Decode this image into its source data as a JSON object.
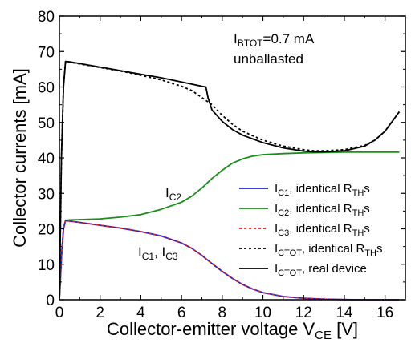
{
  "chart_data": {
    "type": "line",
    "title": "",
    "xlabel": "Collector-emitter voltage V",
    "xlabel_sub": "CE",
    "xlabel_suffix": " [V]",
    "ylabel": "Collector currents [mA]",
    "xlim": [
      0,
      17
    ],
    "ylim": [
      0,
      80
    ],
    "x_ticks": [
      0,
      2,
      4,
      6,
      8,
      10,
      12,
      14,
      16
    ],
    "y_ticks": [
      0,
      10,
      20,
      30,
      40,
      50,
      60,
      70,
      80
    ],
    "grid": false,
    "legend_position": "bottom-right",
    "annotations": {
      "ibtot": {
        "base": "I",
        "sub": "BTOT",
        "rest": "=0.7 mA"
      },
      "unballasted": "unballasted",
      "ic2": {
        "base": "I",
        "sub": "C2"
      },
      "ic1ic3": {
        "base1": "I",
        "sub1": "C1",
        "sep": ", ",
        "base2": "I",
        "sub2": "C3"
      }
    },
    "series": [
      {
        "name": "IC1, identical RTHs",
        "legend": {
          "base": "I",
          "sub": "C1",
          "mid": ", identical R",
          "sub2": "TH",
          "end": "s"
        },
        "color": "#1f1fd6",
        "dash": "solid",
        "x": [
          0,
          0.1,
          0.2,
          0.3,
          0.5,
          1,
          2,
          3,
          4,
          5,
          6,
          6.5,
          7,
          7.5,
          8,
          8.5,
          9,
          9.5,
          10,
          11,
          12,
          13,
          14,
          15,
          16,
          16.7
        ],
        "y": [
          0,
          12,
          20,
          22.3,
          22.2,
          21.8,
          21,
          20.2,
          19.2,
          18,
          16,
          14.5,
          12.5,
          10.2,
          8,
          6,
          4.3,
          3,
          2,
          0.9,
          0.4,
          0.15,
          0.05,
          0,
          0,
          0
        ]
      },
      {
        "name": "IC2, identical RTHs",
        "legend": {
          "base": "I",
          "sub": "C2",
          "mid": ", identical R",
          "sub2": "TH",
          "end": "s"
        },
        "color": "#1a8f1a",
        "dash": "solid",
        "x": [
          0,
          0.1,
          0.2,
          0.3,
          0.5,
          1,
          2,
          3,
          4,
          5,
          6,
          6.5,
          7,
          7.5,
          8,
          8.5,
          9,
          9.5,
          10,
          11,
          12,
          13,
          14,
          15,
          16,
          16.7
        ],
        "y": [
          0,
          12,
          20,
          22.4,
          22.5,
          22.6,
          22.8,
          23.3,
          24,
          25.5,
          27.5,
          29.2,
          31.5,
          34.2,
          36.5,
          38.5,
          39.7,
          40.5,
          40.9,
          41.2,
          41.4,
          41.5,
          41.6,
          41.6,
          41.6,
          41.6
        ]
      },
      {
        "name": "IC3, identical RTHs",
        "legend": {
          "base": "I",
          "sub": "C3",
          "mid": ", identical R",
          "sub2": "TH",
          "end": "s"
        },
        "color": "#e02020",
        "dash": "dotted",
        "x": [
          0,
          0.1,
          0.2,
          0.3,
          0.5,
          1,
          2,
          3,
          4,
          5,
          6,
          6.5,
          7,
          7.5,
          8,
          8.5,
          9,
          9.5,
          10,
          11,
          12,
          13,
          14,
          15,
          16,
          16.7
        ],
        "y": [
          0,
          12,
          20,
          22.3,
          22.2,
          21.8,
          21,
          20.2,
          19.2,
          18,
          16,
          14.5,
          12.5,
          10.2,
          8,
          6,
          4.3,
          3,
          2,
          0.9,
          0.4,
          0.15,
          0.05,
          0,
          0,
          0
        ]
      },
      {
        "name": "ICTOT, identical RTHs",
        "legend": {
          "base": "I",
          "sub": "CTOT",
          "mid": ", identical R",
          "sub2": "TH",
          "end": "s"
        },
        "color": "#000000",
        "dash": "dotted",
        "x": [
          0,
          0.1,
          0.2,
          0.3,
          0.5,
          1,
          2,
          3,
          4,
          5,
          6,
          6.5,
          7,
          7.5,
          8,
          8.5,
          9,
          10,
          11,
          12,
          12.5,
          13,
          14,
          15,
          15.5,
          16,
          16.7
        ],
        "y": [
          0,
          40,
          60,
          67,
          67,
          66.5,
          65.5,
          64.5,
          63.3,
          62,
          60.2,
          59,
          57,
          55,
          52,
          49.5,
          47.5,
          45,
          43.3,
          42.3,
          42,
          42,
          42.3,
          43.5,
          45,
          47.5,
          53
        ]
      },
      {
        "name": "ICTOT, real device",
        "legend": {
          "base": "I",
          "sub": "CTOT",
          "mid": ", real device",
          "sub2": "",
          "end": ""
        },
        "color": "#000000",
        "dash": "solid",
        "x": [
          0,
          0.1,
          0.2,
          0.3,
          0.5,
          1,
          2,
          3,
          4,
          5,
          6,
          7,
          7.2,
          7.3,
          7.5,
          8,
          8.5,
          9,
          10,
          11,
          12,
          12.5,
          13,
          14,
          15,
          15.5,
          16,
          16.7
        ],
        "y": [
          0,
          40,
          60,
          67.2,
          67.1,
          66.6,
          65.6,
          64.6,
          63.6,
          62.6,
          61.4,
          60.2,
          60,
          57,
          53.5,
          50.3,
          48,
          46.4,
          44.3,
          42.8,
          41.9,
          41.7,
          41.7,
          42,
          43.3,
          45,
          47.5,
          53
        ]
      }
    ]
  }
}
